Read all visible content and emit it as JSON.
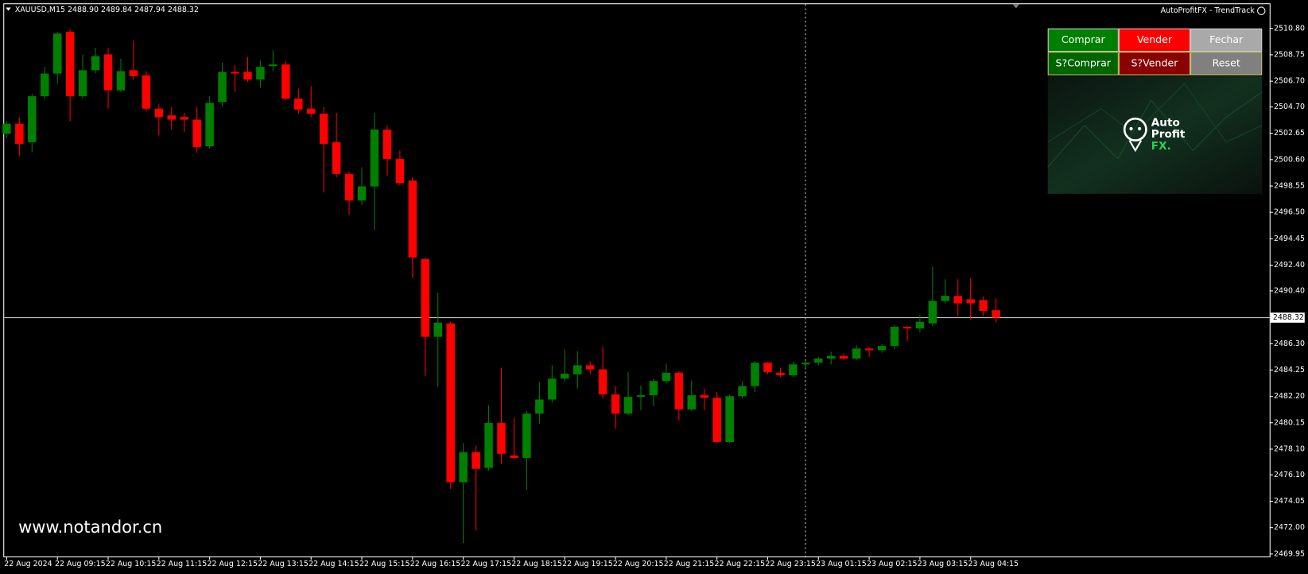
{
  "window": {
    "symbol_info": "XAUUSD,M15 2488.90 2489.84 2487.94 2488.32",
    "indicator_title": "AutoProfitFX - TrendTrack",
    "watermark": "www.notandor.cn"
  },
  "panel": {
    "buttons": [
      {
        "label": "Comprar",
        "color": "#008000"
      },
      {
        "label": "Vender",
        "color": "#ff0000"
      },
      {
        "label": "Fechar",
        "color": "#a9a9a9"
      },
      {
        "label": "S?Comprar",
        "color": "#006400"
      },
      {
        "label": "S?Vender",
        "color": "#8b0000"
      },
      {
        "label": "Reset",
        "color": "#808080"
      }
    ],
    "logo": [
      "Auto",
      "Profit",
      "FX."
    ]
  },
  "chart_data": {
    "type": "candlestick",
    "categories": [
      "22 Aug 2024",
      null,
      null,
      null,
      "22 Aug 09:15",
      null,
      null,
      null,
      "22 Aug 10:15",
      null,
      null,
      null,
      "22 Aug 11:15",
      null,
      null,
      null,
      "22 Aug 12:15",
      null,
      null,
      null,
      "22 Aug 13:15",
      null,
      null,
      null,
      "22 Aug 14:15",
      null,
      null,
      null,
      "22 Aug 15:15",
      null,
      null,
      null,
      "22 Aug 16:15",
      null,
      null,
      null,
      "22 Aug 17:15",
      null,
      null,
      null,
      "22 Aug 18:15",
      null,
      null,
      null,
      "22 Aug 19:15",
      null,
      null,
      null,
      "22 Aug 20:15",
      null,
      null,
      null,
      "22 Aug 21:15",
      null,
      null,
      null,
      "22 Aug 22:15",
      null,
      null,
      null,
      "22 Aug 23:15",
      null,
      null,
      null,
      "23 Aug 01:15",
      null,
      null,
      null,
      "23 Aug 02:15",
      null,
      null,
      null,
      "23 Aug 03:15",
      null,
      null,
      null,
      "23 Aug 04:15",
      null,
      null
    ],
    "open": [
      2502.61,
      2503.39,
      2501.96,
      2505.53,
      2507.29,
      2510.53,
      2505.53,
      2507.55,
      2508.78,
      2505.99,
      2507.55,
      2507.16,
      2504.56,
      2504.04,
      2503.91,
      2503.71,
      2501.64,
      2505.08,
      2507.42,
      2507.42,
      2506.83,
      2507.87,
      2508.0,
      2505.34,
      2504.56,
      2504.17,
      2501.96,
      2499.49,
      2497.42,
      2498.52,
      2502.94,
      2500.66,
      2498.97,
      2492.87,
      2486.83,
      2487.87,
      2475.53,
      2477.87,
      2476.64,
      2480.14,
      2477.61,
      2477.42,
      2480.86,
      2481.96,
      2483.58,
      2483.91,
      2484.62,
      2484.3,
      2482.35,
      2480.86,
      2482.16,
      2482.29,
      2483.39,
      2484.04,
      2481.18,
      2482.29,
      2482.09,
      2478.65,
      2482.22,
      2483.0,
      2484.82,
      2484.04,
      2483.84,
      2484.69,
      2484.82,
      2485.14,
      2485.34,
      2485.14,
      2485.92,
      2485.79,
      2486.12,
      2487.61,
      2487.48,
      2487.87,
      2489.62,
      2490.01,
      2489.75,
      2489.69,
      2488.9
    ],
    "high": [
      2503.58,
      2503.91,
      2505.73,
      2507.81,
      2510.53,
      2510.73,
      2508.78,
      2509.3,
      2509.3,
      2508.45,
      2509.88,
      2507.48,
      2504.88,
      2504.69,
      2504.23,
      2504.69,
      2505.53,
      2508.13,
      2507.94,
      2508.58,
      2508.32,
      2509.1,
      2508.26,
      2506.12,
      2506.31,
      2504.69,
      2504.23,
      2499.69,
      2500.01,
      2504.23,
      2503.26,
      2501.31,
      2499.23,
      2493.0,
      2490.27,
      2488.0,
      2478.58,
      2478.39,
      2481.51,
      2484.43,
      2480.53,
      2481.05,
      2483.32,
      2484.62,
      2485.86,
      2485.73,
      2484.95,
      2486.05,
      2483.0,
      2484.1,
      2483.06,
      2483.58,
      2484.75,
      2484.17,
      2483.45,
      2482.81,
      2482.55,
      2482.35,
      2483.39,
      2484.95,
      2484.88,
      2484.43,
      2484.88,
      2485.01,
      2485.27,
      2485.66,
      2485.53,
      2486.18,
      2485.99,
      2486.25,
      2487.74,
      2487.68,
      2488.52,
      2492.29,
      2491.31,
      2491.31,
      2491.38,
      2489.95,
      2489.84
    ],
    "low": [
      2502.29,
      2500.86,
      2501.18,
      2505.34,
      2506.51,
      2503.58,
      2505.34,
      2507.29,
      2504.56,
      2505.86,
      2506.83,
      2504.36,
      2502.48,
      2502.94,
      2502.74,
      2501.12,
      2501.44,
      2504.69,
      2505.86,
      2506.64,
      2506.18,
      2507.48,
      2505.21,
      2504.17,
      2503.91,
      2498.06,
      2499.23,
      2496.31,
      2497.09,
      2495.14,
      2499.36,
      2498.58,
      2491.38,
      2483.78,
      2482.94,
      2475.01,
      2470.79,
      2471.77,
      2476.44,
      2476.96,
      2477.29,
      2474.95,
      2480.08,
      2481.7,
      2483.32,
      2482.81,
      2483.91,
      2482.03,
      2479.69,
      2480.73,
      2481.12,
      2481.44,
      2483.26,
      2480.34,
      2481.05,
      2481.12,
      2478.58,
      2478.58,
      2482.03,
      2482.55,
      2483.91,
      2483.71,
      2483.71,
      2484.3,
      2484.62,
      2484.69,
      2485.01,
      2485.01,
      2485.27,
      2485.6,
      2485.86,
      2486.51,
      2487.16,
      2487.68,
      2489.43,
      2488.45,
      2488.13,
      2488.45,
      2487.94
    ],
    "close": [
      2503.39,
      2501.83,
      2505.53,
      2507.29,
      2510.4,
      2505.53,
      2507.55,
      2508.65,
      2505.99,
      2507.48,
      2507.09,
      2504.56,
      2503.91,
      2503.71,
      2503.71,
      2501.57,
      2505.01,
      2507.42,
      2507.29,
      2506.83,
      2507.81,
      2508.0,
      2505.34,
      2504.49,
      2504.17,
      2501.83,
      2499.49,
      2497.42,
      2498.52,
      2502.94,
      2500.66,
      2498.78,
      2493.0,
      2486.83,
      2487.94,
      2475.53,
      2477.87,
      2476.57,
      2480.14,
      2477.74,
      2477.42,
      2480.86,
      2481.96,
      2483.58,
      2483.97,
      2484.62,
      2484.3,
      2482.35,
      2480.86,
      2482.16,
      2482.29,
      2483.39,
      2484.04,
      2481.18,
      2482.29,
      2482.09,
      2478.65,
      2482.22,
      2483.0,
      2484.82,
      2484.1,
      2483.84,
      2484.69,
      2484.82,
      2485.14,
      2485.34,
      2485.14,
      2485.92,
      2485.79,
      2486.12,
      2487.61,
      2487.48,
      2488.0,
      2489.62,
      2490.01,
      2489.43,
      2489.43,
      2488.84,
      2488.32
    ],
    "up_color": "#008000",
    "down_color": "#ff0000",
    "ylim": [
      2469.76,
      2512.75
    ],
    "yticks": [
      {
        "value": 2510.8,
        "label": "2510.80"
      },
      2508.75,
      {
        "value": 2506.7,
        "label": "2506.70"
      },
      {
        "value": 2504.7,
        "label": "2504.70"
      },
      2502.65,
      {
        "value": 2500.6,
        "label": "2500.60"
      },
      2498.55,
      {
        "value": 2496.5,
        "label": "2496.50"
      },
      2494.45,
      {
        "value": 2492.4,
        "label": "2492.40"
      },
      {
        "value": 2490.4,
        "label": "2490.40"
      },
      {
        "value": 2486.3,
        "label": "2486.30"
      },
      2484.25,
      {
        "value": 2482.2,
        "label": "2482.20"
      },
      2480.15,
      {
        "value": 2478.1,
        "label": "2478.10"
      },
      {
        "value": 2476.1,
        "label": "2476.10"
      },
      2474.05,
      {
        "value": 2472,
        "label": "2472.00"
      },
      2469.95
    ],
    "bid": {
      "value": 2488.32,
      "label": "2488.32"
    }
  }
}
